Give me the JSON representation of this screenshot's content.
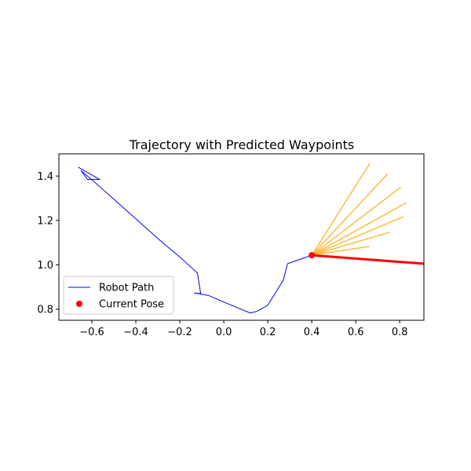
{
  "chart_data": {
    "type": "line",
    "title": "Trajectory with Predicted Waypoints",
    "xlabel": "",
    "ylabel": "",
    "xlim": [
      -0.75,
      0.91
    ],
    "ylim": [
      0.75,
      1.5
    ],
    "xticks": [
      -0.6,
      -0.4,
      -0.2,
      0.0,
      0.2,
      0.4,
      0.6,
      0.8
    ],
    "xtick_labels": [
      "−0.6",
      "−0.4",
      "−0.2",
      "0.0",
      "0.2",
      "0.4",
      "0.6",
      "0.8"
    ],
    "yticks": [
      0.8,
      1.0,
      1.2,
      1.4
    ],
    "ytick_labels": [
      "0.8",
      "1.0",
      "1.2",
      "1.4"
    ],
    "grid": false,
    "legend_position": "lower-left",
    "series": [
      {
        "name": "Robot Path",
        "kind": "line",
        "color": "#0000ff",
        "points": [
          [
            -0.662,
            1.44
          ],
          [
            -0.565,
            1.385
          ],
          [
            -0.62,
            1.385
          ],
          [
            -0.65,
            1.425
          ],
          [
            -0.59,
            1.375
          ],
          [
            -0.29,
            1.11
          ],
          [
            -0.2,
            1.035
          ],
          [
            -0.12,
            0.963
          ],
          [
            -0.105,
            0.87
          ],
          [
            -0.135,
            0.873
          ],
          [
            -0.07,
            0.862
          ],
          [
            0.01,
            0.828
          ],
          [
            0.12,
            0.783
          ],
          [
            0.15,
            0.79
          ],
          [
            0.2,
            0.818
          ],
          [
            0.27,
            0.93
          ],
          [
            0.29,
            1.005
          ],
          [
            0.4,
            1.043
          ]
        ]
      },
      {
        "name": "Current Pose",
        "kind": "scatter",
        "color": "#ff0000",
        "points": [
          [
            0.4,
            1.043
          ]
        ]
      }
    ],
    "heading_line": {
      "color": "#ff0000",
      "from": [
        0.4,
        1.043
      ],
      "to": [
        0.91,
        1.005
      ]
    },
    "predicted_waypoints": {
      "color": "#ffa500",
      "origin": [
        0.4,
        1.043
      ],
      "endpoints": [
        [
          0.663,
          1.083
        ],
        [
          0.755,
          1.147
        ],
        [
          0.817,
          1.217
        ],
        [
          0.83,
          1.28
        ],
        [
          0.805,
          1.35
        ],
        [
          0.745,
          1.41
        ],
        [
          0.665,
          1.458
        ]
      ]
    }
  }
}
